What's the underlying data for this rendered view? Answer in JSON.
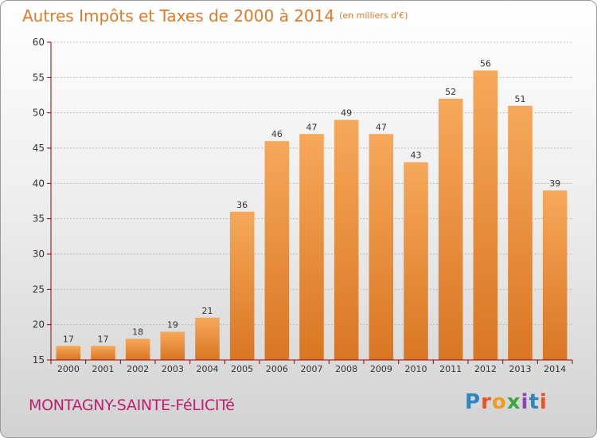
{
  "title": "Autres Impôts et Taxes de 2000 à 2014",
  "subtitle": "(en milliers d'€)",
  "town": "MONTAGNY-SAINTE-FéLICITé",
  "logo": {
    "text": "Proxiti",
    "letter_colors": [
      "#2e86c1",
      "#e4542a",
      "#f29b1d",
      "#3aa63f",
      "#8e44ad",
      "#2e86c1",
      "#e4542a"
    ]
  },
  "colors": {
    "bar_light": "#f6a85a",
    "bar_dark": "#d97623",
    "title": "#e07a2a",
    "town": "#c01f6b",
    "axis": "#990000"
  },
  "chart_data": {
    "type": "bar",
    "categories": [
      "2000",
      "2001",
      "2002",
      "2003",
      "2004",
      "2005",
      "2006",
      "2007",
      "2008",
      "2009",
      "2010",
      "2011",
      "2012",
      "2013",
      "2014"
    ],
    "values": [
      17,
      17,
      18,
      19,
      21,
      36,
      46,
      47,
      49,
      47,
      43,
      52,
      56,
      51,
      39
    ],
    "ylim": [
      15,
      60
    ],
    "yticks": [
      15,
      20,
      25,
      30,
      35,
      40,
      45,
      50,
      55,
      60
    ],
    "grid": true,
    "data_labels": true
  }
}
